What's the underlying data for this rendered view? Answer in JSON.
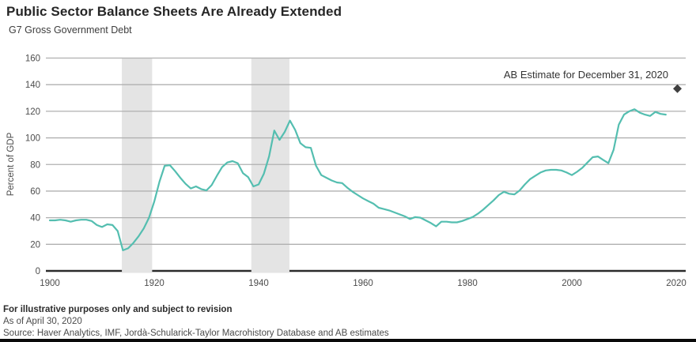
{
  "header": {
    "title": "Public Sector Balance Sheets Are Already Extended",
    "subtitle": "G7 Gross Government Debt"
  },
  "footer": {
    "disclaimer": "For illustrative purposes only and subject to revision",
    "as_of": "As of April 30, 2020",
    "source": "Source: Haver Analytics, IMF, Jordà-Schularick-Taylor Macrohistory Database and AB estimates"
  },
  "colors": {
    "line": "#54beb0",
    "band": "#e4e4e4",
    "grid": "#b0b0b0",
    "axis": "#2b2b2b",
    "diamond": "#3f3f3f",
    "tick_text": "#4d4d4d",
    "annotation_text": "#333333"
  },
  "chart_data": {
    "type": "line",
    "title": "G7 Gross Government Debt",
    "xlabel": "",
    "ylabel": "Percent of GDP",
    "ylim": [
      0,
      160
    ],
    "xlim": [
      1900,
      2022
    ],
    "yticks": [
      0,
      20,
      40,
      60,
      80,
      100,
      120,
      140,
      160
    ],
    "xticks": [
      1900,
      1920,
      1940,
      1960,
      1980,
      2000,
      2020
    ],
    "grid": "horizontal",
    "legend": "none",
    "bands": [
      {
        "from": 1913.8,
        "to": 1919.6
      },
      {
        "from": 1938.6,
        "to": 1945.9
      }
    ],
    "series": [
      {
        "name": "G7 gross government debt (percent of GDP)",
        "x": [
          1900,
          1901,
          1902,
          1903,
          1904,
          1905,
          1906,
          1907,
          1908,
          1909,
          1910,
          1911,
          1912,
          1913,
          1914,
          1915,
          1916,
          1917,
          1918,
          1919,
          1920,
          1921,
          1922,
          1923,
          1924,
          1925,
          1926,
          1927,
          1928,
          1929,
          1930,
          1931,
          1932,
          1933,
          1934,
          1935,
          1936,
          1937,
          1938,
          1939,
          1940,
          1941,
          1942,
          1943,
          1944,
          1945,
          1946,
          1947,
          1948,
          1949,
          1950,
          1951,
          1952,
          1953,
          1954,
          1955,
          1956,
          1957,
          1958,
          1959,
          1960,
          1961,
          1962,
          1963,
          1964,
          1965,
          1966,
          1967,
          1968,
          1969,
          1970,
          1971,
          1972,
          1973,
          1974,
          1975,
          1976,
          1977,
          1978,
          1979,
          1980,
          1981,
          1982,
          1983,
          1984,
          1985,
          1986,
          1987,
          1988,
          1989,
          1990,
          1991,
          1992,
          1993,
          1994,
          1995,
          1996,
          1997,
          1998,
          1999,
          2000,
          2001,
          2002,
          2003,
          2004,
          2005,
          2006,
          2007,
          2008,
          2009,
          2010,
          2011,
          2012,
          2013,
          2014,
          2015,
          2016,
          2017,
          2018
        ],
        "y": [
          38,
          38,
          38.5,
          38,
          37,
          38,
          38.5,
          38.5,
          37.5,
          34.5,
          33,
          35,
          34.5,
          30,
          15.5,
          17,
          21,
          26,
          32,
          40,
          52,
          67,
          79,
          79.5,
          75,
          70,
          65.5,
          62,
          63.5,
          61.5,
          60.5,
          64.5,
          71.5,
          78,
          81.5,
          82.5,
          81,
          73.5,
          70.5,
          63.5,
          65,
          73,
          86,
          105.5,
          98.5,
          104.5,
          113,
          106,
          96,
          93,
          92.5,
          79,
          72,
          70,
          68,
          66.5,
          66,
          62.5,
          59.5,
          57,
          54.5,
          52.5,
          50.5,
          47.5,
          46.5,
          45.5,
          44,
          42.5,
          41,
          39,
          40.5,
          40,
          38,
          36,
          33.5,
          37,
          37,
          36.5,
          36.5,
          37.5,
          39,
          40.5,
          43,
          46,
          49.5,
          53,
          57,
          59.5,
          58,
          57.5,
          60.5,
          65,
          69,
          71.5,
          74,
          75.5,
          76,
          76,
          75.5,
          74,
          72,
          74.5,
          77.5,
          81.5,
          85.5,
          86,
          83.5,
          81,
          91,
          110,
          117.5,
          120,
          121.5,
          119,
          117.5,
          116.5,
          119.5,
          118,
          117.5
        ]
      }
    ],
    "estimate_point": {
      "x": 2020,
      "y": 137,
      "label": "AB Estimate for December 31, 2020"
    }
  }
}
